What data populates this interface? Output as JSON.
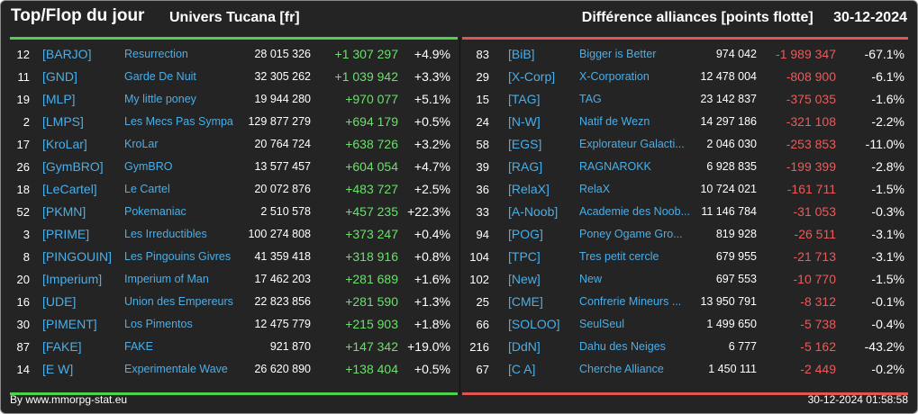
{
  "header": {
    "title": "Top/Flop du jour",
    "universe": "Univers Tucana [fr]",
    "subtitle": "Différence alliances [points flotte]",
    "date": "30-12-2024"
  },
  "top": [
    {
      "rank": "12",
      "tag": "[BARJO]",
      "name": "Resurrection",
      "points": "28 015 326",
      "diff": "+1 307 297",
      "pct": "+4.9%"
    },
    {
      "rank": "11",
      "tag": "[GND]",
      "name": "Garde De Nuit",
      "points": "32 305 262",
      "diff": "+1 039 942",
      "pct": "+3.3%"
    },
    {
      "rank": "19",
      "tag": "[MLP]",
      "name": "My little poney",
      "points": "19 944 280",
      "diff": "+970 077",
      "pct": "+5.1%"
    },
    {
      "rank": "2",
      "tag": "[LMPS]",
      "name": "Les Mecs Pas Sympa",
      "points": "129 877 279",
      "diff": "+694 179",
      "pct": "+0.5%"
    },
    {
      "rank": "17",
      "tag": "[KroLar]",
      "name": "KroLar",
      "points": "20 764 724",
      "diff": "+638 726",
      "pct": "+3.2%"
    },
    {
      "rank": "26",
      "tag": "[GymBRO]",
      "name": "GymBRO",
      "points": "13 577 457",
      "diff": "+604 054",
      "pct": "+4.7%"
    },
    {
      "rank": "18",
      "tag": "[LeCartel]",
      "name": "Le Cartel",
      "points": "20 072 876",
      "diff": "+483 727",
      "pct": "+2.5%"
    },
    {
      "rank": "52",
      "tag": "[PKMN]",
      "name": "Pokemaniac",
      "points": "2 510 578",
      "diff": "+457 235",
      "pct": "+22.3%"
    },
    {
      "rank": "3",
      "tag": "[PRIME]",
      "name": "Les Irreductibles",
      "points": "100 274 808",
      "diff": "+373 247",
      "pct": "+0.4%"
    },
    {
      "rank": "8",
      "tag": "[PINGOUIN]",
      "name": "Les Pingouins Givres",
      "points": "41 359 418",
      "diff": "+318 916",
      "pct": "+0.8%"
    },
    {
      "rank": "20",
      "tag": "[Imperium]",
      "name": "Imperium of Man",
      "points": "17 462 203",
      "diff": "+281 689",
      "pct": "+1.6%"
    },
    {
      "rank": "16",
      "tag": "[UDE]",
      "name": "Union des Empereurs",
      "points": "22 823 856",
      "diff": "+281 590",
      "pct": "+1.3%"
    },
    {
      "rank": "30",
      "tag": "[PIMENT]",
      "name": "Los Pimentos",
      "points": "12 475 779",
      "diff": "+215 903",
      "pct": "+1.8%"
    },
    {
      "rank": "87",
      "tag": "[FAKE]",
      "name": "FAKE",
      "points": "921 870",
      "diff": "+147 342",
      "pct": "+19.0%"
    },
    {
      "rank": "14",
      "tag": "[E W]",
      "name": "Experimentale Wave",
      "points": "26 620 890",
      "diff": "+138 404",
      "pct": "+0.5%"
    }
  ],
  "flop": [
    {
      "rank": "83",
      "tag": "[BiB]",
      "name": "Bigger is Better",
      "points": "974 042",
      "diff": "-1 989 347",
      "pct": "-67.1%"
    },
    {
      "rank": "29",
      "tag": "[X-Corp]",
      "name": "X-Corporation",
      "points": "12 478 004",
      "diff": "-808 900",
      "pct": "-6.1%"
    },
    {
      "rank": "15",
      "tag": "[TAG]",
      "name": "TAG",
      "points": "23 142 837",
      "diff": "-375 035",
      "pct": "-1.6%"
    },
    {
      "rank": "24",
      "tag": "[N-W]",
      "name": "Natif de Wezn",
      "points": "14 297 186",
      "diff": "-321 108",
      "pct": "-2.2%"
    },
    {
      "rank": "58",
      "tag": "[EGS]",
      "name": "Explorateur Galacti...",
      "points": "2 046 030",
      "diff": "-253 853",
      "pct": "-11.0%"
    },
    {
      "rank": "39",
      "tag": "[RAG]",
      "name": "RAGNAROKK",
      "points": "6 928 835",
      "diff": "-199 399",
      "pct": "-2.8%"
    },
    {
      "rank": "36",
      "tag": "[RelaX]",
      "name": "RelaX",
      "points": "10 724 021",
      "diff": "-161 711",
      "pct": "-1.5%"
    },
    {
      "rank": "33",
      "tag": "[A-Noob]",
      "name": "Academie des Noob...",
      "points": "11 146 784",
      "diff": "-31 053",
      "pct": "-0.3%"
    },
    {
      "rank": "94",
      "tag": "[POG]",
      "name": "Poney Ogame Gro...",
      "points": "819 928",
      "diff": "-26 511",
      "pct": "-3.1%"
    },
    {
      "rank": "104",
      "tag": "[TPC]",
      "name": "Tres petit cercle",
      "points": "679 955",
      "diff": "-21 713",
      "pct": "-3.1%"
    },
    {
      "rank": "102",
      "tag": "[New]",
      "name": "New",
      "points": "697 553",
      "diff": "-10 770",
      "pct": "-1.5%"
    },
    {
      "rank": "25",
      "tag": "[CME]",
      "name": "Confrerie Mineurs ...",
      "points": "13 950 791",
      "diff": "-8 312",
      "pct": "-0.1%"
    },
    {
      "rank": "66",
      "tag": "[SOLOO]",
      "name": "SeulSeul",
      "points": "1 499 650",
      "diff": "-5 738",
      "pct": "-0.4%"
    },
    {
      "rank": "216",
      "tag": "[DdN]",
      "name": "Dahu des Neiges",
      "points": "6 777",
      "diff": "-5 162",
      "pct": "-43.2%"
    },
    {
      "rank": "67",
      "tag": "[C A]",
      "name": "Cherche Alliance",
      "points": "1 450 111",
      "diff": "-2 449",
      "pct": "-0.2%"
    }
  ],
  "footer": {
    "credit": "By www.mmorpg-stat.eu",
    "timestamp": "30-12-2024 01:58:58"
  },
  "colors": {
    "background": "#242424",
    "top_accent": "#4cd14c",
    "flop_accent": "#e05550",
    "link": "#4aaee8",
    "positive": "#6be06b",
    "negative": "#ec5a5a"
  }
}
